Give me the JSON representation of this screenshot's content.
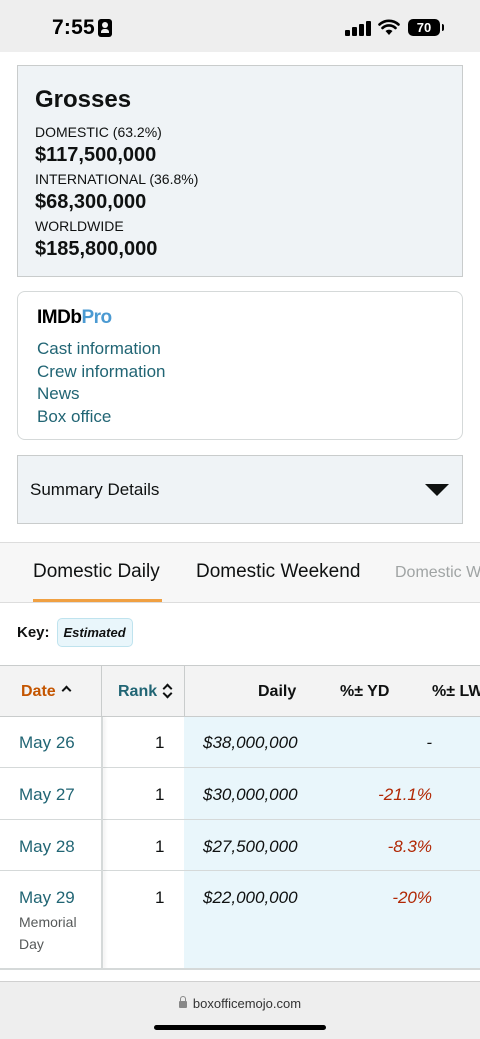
{
  "status_bar": {
    "time": "7:55",
    "battery": "70"
  },
  "grosses": {
    "title": "Grosses",
    "domestic_label": "DOMESTIC (63.2%)",
    "domestic_value": "$117,500,000",
    "international_label": "INTERNATIONAL (36.8%)",
    "international_value": "$68,300,000",
    "worldwide_label": "WORLDWIDE",
    "worldwide_value": "$185,800,000"
  },
  "imdbpro": {
    "logo_imdb": "IMDb",
    "logo_pro": "Pro",
    "links": [
      "Cast information",
      "Crew information",
      "News",
      "Box office"
    ]
  },
  "summary": {
    "label": "Summary Details"
  },
  "tabs": [
    {
      "label": "Domestic Daily",
      "active": true
    },
    {
      "label": "Domestic Weekend",
      "active": false
    },
    {
      "label": "Domestic W",
      "active": false
    }
  ],
  "key": {
    "label": "Key:",
    "badge": "Estimated"
  },
  "table": {
    "headers": {
      "date": "Date",
      "rank": "Rank",
      "daily": "Daily",
      "pct_yd": "%± YD",
      "pct_lw": "%± LW"
    },
    "rows": [
      {
        "date": "May 26",
        "rank": "1",
        "daily": "$38,000,000",
        "pct_yd": "-",
        "note": ""
      },
      {
        "date": "May 27",
        "rank": "1",
        "daily": "$30,000,000",
        "pct_yd": "-21.1%",
        "note": ""
      },
      {
        "date": "May 28",
        "rank": "1",
        "daily": "$27,500,000",
        "pct_yd": "-8.3%",
        "note": ""
      },
      {
        "date": "May 29",
        "rank": "1",
        "daily": "$22,000,000",
        "pct_yd": "-20%",
        "note_line1": "Memorial",
        "note_line2": "Day"
      }
    ]
  },
  "browser": {
    "url": "boxofficemojo.com"
  }
}
